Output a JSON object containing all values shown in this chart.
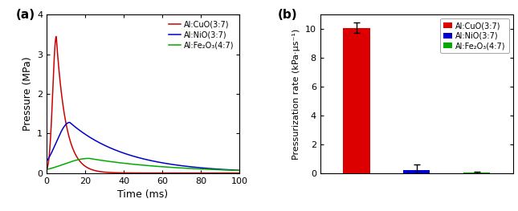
{
  "panel_a": {
    "title": "(a)",
    "xlabel": "Time (ms)",
    "ylabel": "Pressure (MPa)",
    "xlim": [
      0,
      100
    ],
    "ylim": [
      0,
      4
    ],
    "yticks": [
      0,
      1,
      2,
      3,
      4
    ],
    "xticks": [
      0,
      20,
      40,
      60,
      80,
      100
    ],
    "lines": [
      {
        "label": "Al:CuO(3:7)",
        "color": "#cc0000",
        "peak_time": 5.0,
        "peak_val": 3.45,
        "rise_tau": 1.8,
        "fall_tau": 5.0
      },
      {
        "label": "Al:NiO(3:7)",
        "color": "#0000cc",
        "peak_time": 12.0,
        "peak_val": 1.28,
        "rise_tau": 7.0,
        "fall_tau": 30.0
      },
      {
        "label": "Al:Fe₂O₃(4:7)",
        "color": "#00aa00",
        "peak_time": 22.0,
        "peak_val": 0.37,
        "rise_tau": 13.0,
        "fall_tau": 45.0
      }
    ]
  },
  "panel_b": {
    "title": "(b)",
    "ylabel": "Pressurization rate (kPa·μs⁻¹)",
    "ylim": [
      0,
      11
    ],
    "yticks": [
      0,
      2,
      4,
      6,
      8,
      10
    ],
    "categories": [
      "Al:CuO(3:7)",
      "Al:NiO(3:7)",
      "Al:Fe₂O₃(4:7)"
    ],
    "values": [
      10.1,
      0.22,
      0.04
    ],
    "errors": [
      0.35,
      0.35,
      0.05
    ],
    "colors": [
      "#dd0000",
      "#0000cc",
      "#00aa00"
    ],
    "bar_width": 0.45,
    "x_positions": [
      0,
      1,
      2
    ]
  }
}
